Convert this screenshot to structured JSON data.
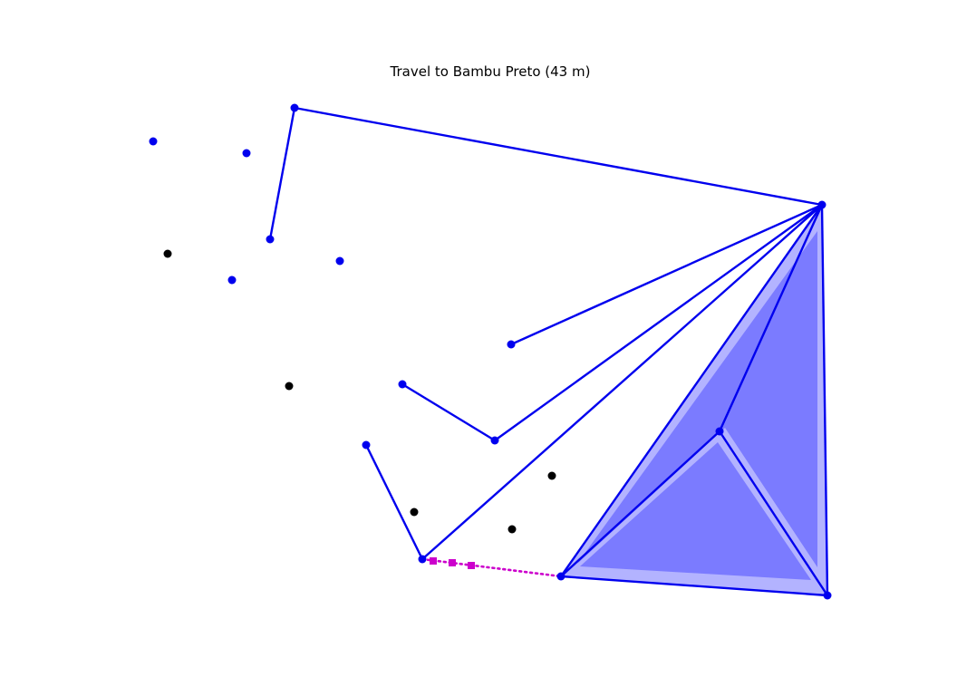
{
  "title": "Travel to Bambu Preto (43 m)",
  "colors": {
    "network": "#0000ee",
    "region_fill": "#7b7bff",
    "region_halo": "#b3b3ff",
    "other_nodes": "#000000",
    "travel_path": "#cc00cc"
  }
}
